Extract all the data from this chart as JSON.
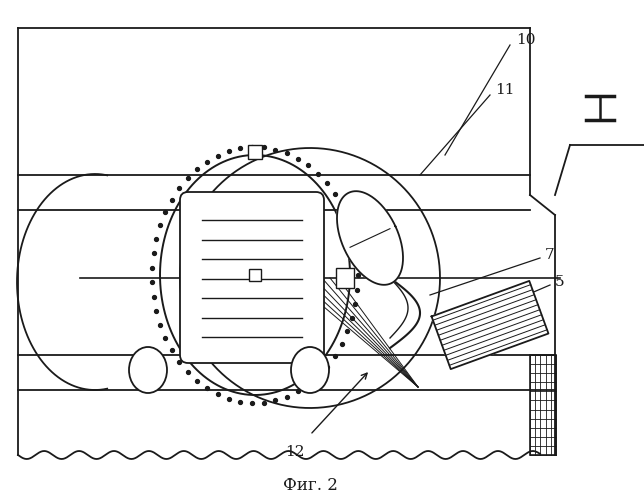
{
  "bg_color": "#ffffff",
  "line_color": "#1a1a1a",
  "title": "Фиг. 2",
  "figsize": [
    6.44,
    5.0
  ],
  "dpi": 100
}
